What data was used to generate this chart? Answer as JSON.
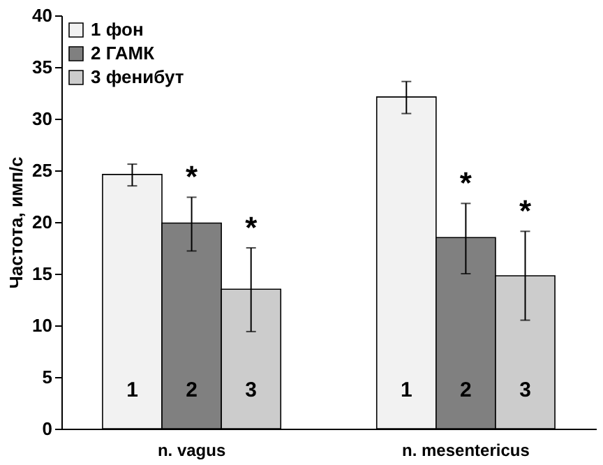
{
  "chart_data": {
    "type": "bar",
    "ylabel": "Частота, имп/с",
    "categories": [
      "n. vagus",
      "n. mesentericus"
    ],
    "series": [
      {
        "name": "1 фон",
        "color": "#f2f2f2",
        "values": [
          24.6,
          32.1
        ],
        "errors": [
          [
            23.5,
            25.6
          ],
          [
            30.5,
            33.6
          ]
        ]
      },
      {
        "name": "2 ГАМК",
        "color": "#808080",
        "values": [
          19.9,
          18.5
        ],
        "errors": [
          [
            17.2,
            22.4
          ],
          [
            15.0,
            21.8
          ]
        ],
        "value_labels": [
          "*",
          "*"
        ]
      },
      {
        "name": "3 фенибут",
        "color": "#cccccc",
        "values": [
          13.5,
          14.8
        ],
        "errors": [
          [
            9.4,
            17.5
          ],
          [
            10.5,
            19.1
          ]
        ],
        "value_labels": [
          "*",
          "*"
        ]
      }
    ],
    "annotations": [
      "1",
      "2",
      "3",
      "1",
      "2",
      "3"
    ],
    "ylim": [
      0,
      40
    ],
    "yticks": [
      0,
      5,
      10,
      15,
      20,
      25,
      30,
      35,
      40
    ],
    "grid": false,
    "legend": "top left"
  }
}
